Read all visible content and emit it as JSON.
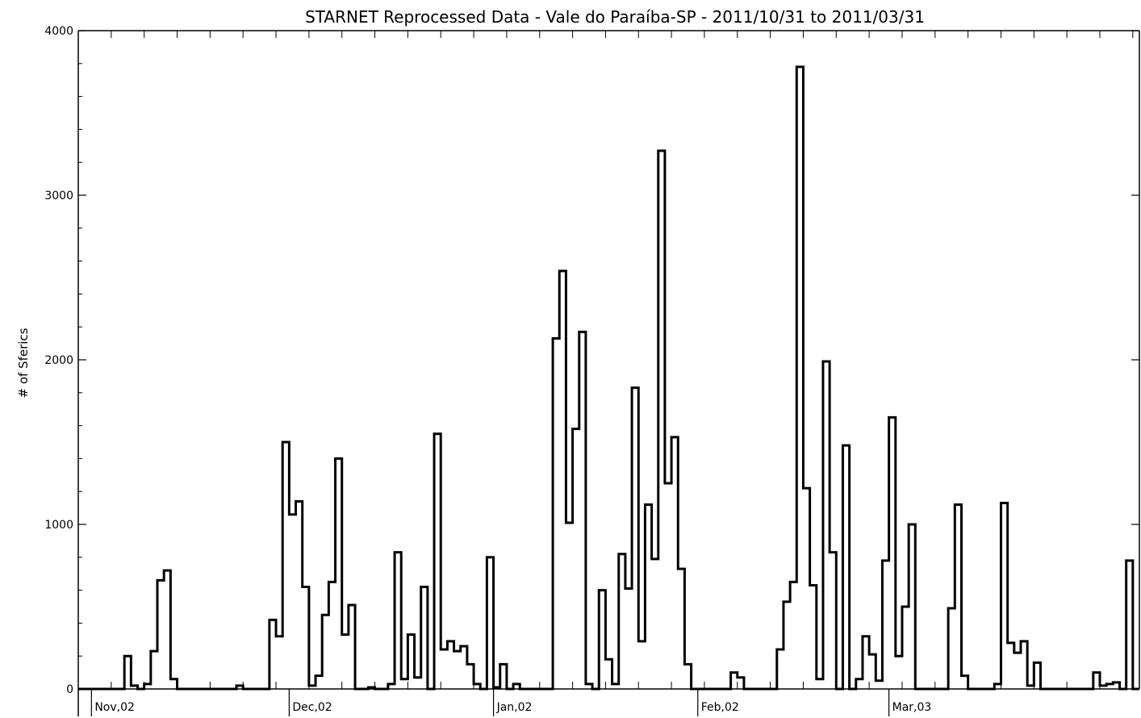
{
  "chart_data": {
    "type": "bar",
    "title": "STARNET Reprocessed Data - Vale do Paraíba-SP - 2011/10/31 to 2011/03/31",
    "ylabel": "# of Sferics",
    "xlabel": "",
    "ylim": [
      0,
      4000
    ],
    "yticks": [
      {
        "value": 0,
        "label": "0"
      },
      {
        "value": 1000,
        "label": "1000"
      },
      {
        "value": 2000,
        "label": "2000"
      },
      {
        "value": 3000,
        "label": "3000"
      },
      {
        "value": 4000,
        "label": "4000"
      }
    ],
    "month_labels": [
      {
        "day_index": 2,
        "label": "Nov,02"
      },
      {
        "day_index": 32,
        "label": "Dec,02"
      },
      {
        "day_index": 63,
        "label": "Jan,02"
      },
      {
        "day_index": 94,
        "label": "Feb,02"
      },
      {
        "day_index": 123,
        "label": "Mar,03"
      }
    ],
    "grid": false,
    "style": "step",
    "values": [
      0,
      0,
      0,
      0,
      0,
      0,
      0,
      200,
      20,
      0,
      30,
      230,
      660,
      720,
      60,
      0,
      0,
      0,
      0,
      0,
      0,
      0,
      0,
      0,
      20,
      0,
      0,
      0,
      0,
      420,
      320,
      1500,
      1060,
      1140,
      620,
      20,
      80,
      450,
      650,
      1400,
      330,
      510,
      0,
      0,
      10,
      0,
      0,
      30,
      830,
      60,
      330,
      70,
      620,
      0,
      1550,
      240,
      290,
      230,
      260,
      150,
      30,
      0,
      800,
      10,
      150,
      0,
      30,
      0,
      0,
      0,
      0,
      0,
      2130,
      2540,
      1010,
      1580,
      2170,
      30,
      0,
      600,
      180,
      30,
      820,
      610,
      1830,
      290,
      1120,
      790,
      3270,
      1250,
      1530,
      730,
      150,
      0,
      0,
      0,
      0,
      0,
      0,
      100,
      70,
      0,
      0,
      0,
      0,
      0,
      240,
      530,
      650,
      3780,
      1220,
      630,
      60,
      1990,
      830,
      0,
      1480,
      0,
      60,
      320,
      210,
      50,
      780,
      1650,
      200,
      500,
      1000,
      0,
      0,
      0,
      0,
      0,
      490,
      1120,
      80,
      0,
      0,
      0,
      0,
      30,
      1130,
      280,
      220,
      290,
      20,
      160,
      0,
      0,
      0,
      0,
      0,
      0,
      0,
      0,
      100,
      20,
      30,
      40,
      0,
      780,
      0
    ]
  }
}
